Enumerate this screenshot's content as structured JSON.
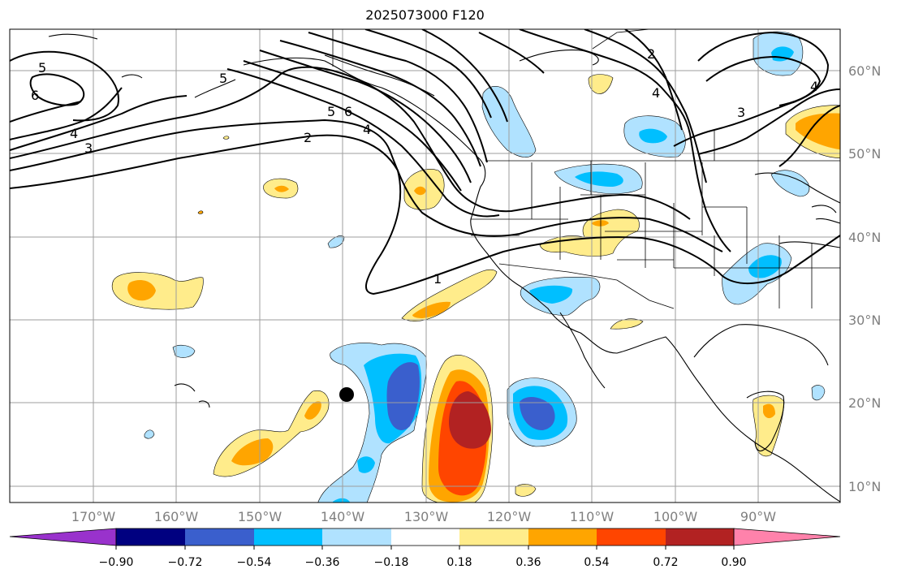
{
  "title": "2025073000 F120",
  "latitude_labels": [
    "60°N",
    "50°N",
    "40°N",
    "30°N",
    "20°N",
    "10°N"
  ],
  "longitude_labels": [
    "170°W",
    "160°W",
    "150°W",
    "140°W",
    "130°W",
    "120°W",
    "110°W",
    "100°W",
    "90°W"
  ],
  "colorbar": {
    "tick_labels": [
      "−0.90",
      "−0.72",
      "−0.54",
      "−0.36",
      "−0.18",
      "0.18",
      "0.36",
      "0.54",
      "0.72",
      "0.90"
    ],
    "colors": [
      "#9932cc",
      "#000080",
      "#3a5fcd",
      "#00bfff",
      "#b0e2ff",
      "#ffffff",
      "#ffec8b",
      "#ffa500",
      "#ff4500",
      "#b22222",
      "#ff82ab"
    ]
  },
  "contour_labels": [
    "5",
    "6",
    "4",
    "3",
    "5",
    "6",
    "4",
    "2",
    "1",
    "2",
    "4",
    "3",
    "4",
    "5"
  ],
  "contour_color": "#000000",
  "marker_color": "#000000"
}
